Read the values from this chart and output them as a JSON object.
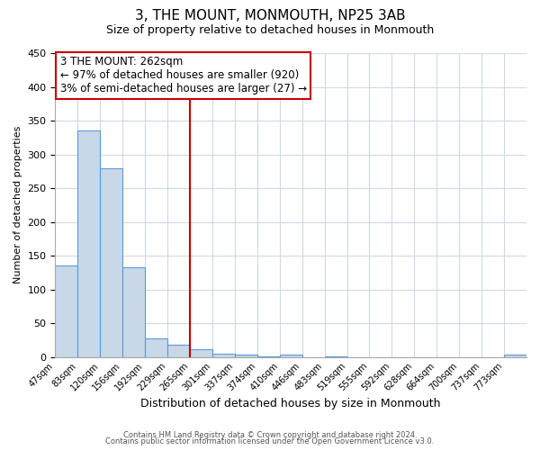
{
  "title": "3, THE MOUNT, MONMOUTH, NP25 3AB",
  "subtitle": "Size of property relative to detached houses in Monmouth",
  "xlabel": "Distribution of detached houses by size in Monmouth",
  "ylabel": "Number of detached properties",
  "bar_color": "#c8d8e8",
  "bar_edge_color": "#5b9bd5",
  "bin_labels": [
    "47sqm",
    "83sqm",
    "120sqm",
    "156sqm",
    "192sqm",
    "229sqm",
    "265sqm",
    "301sqm",
    "337sqm",
    "374sqm",
    "410sqm",
    "446sqm",
    "483sqm",
    "519sqm",
    "555sqm",
    "592sqm",
    "628sqm",
    "664sqm",
    "700sqm",
    "737sqm",
    "773sqm"
  ],
  "bar_heights": [
    135,
    336,
    280,
    133,
    27,
    18,
    12,
    5,
    4,
    1,
    3,
    0,
    1,
    0,
    0,
    0,
    0,
    0,
    0,
    0,
    3
  ],
  "vline_x_idx": 6,
  "vline_color": "#cc0000",
  "annotation_line1": "3 THE MOUNT: 262sqm",
  "annotation_line2": "← 97% of detached houses are smaller (920)",
  "annotation_line3": "3% of semi-detached houses are larger (27) →",
  "annotation_box_color": "#ffffff",
  "annotation_box_edge": "#cc0000",
  "ylim": [
    0,
    450
  ],
  "yticks": [
    0,
    50,
    100,
    150,
    200,
    250,
    300,
    350,
    400,
    450
  ],
  "footer1": "Contains HM Land Registry data © Crown copyright and database right 2024.",
  "footer2": "Contains public sector information licensed under the Open Government Licence v3.0.",
  "background_color": "#ffffff",
  "grid_color": "#d0d8e8",
  "annotation_fontsize": 8.5,
  "axis_fontsize": 8,
  "xlabel_fontsize": 9,
  "title_fontsize": 11,
  "subtitle_fontsize": 9,
  "footer_fontsize": 6
}
